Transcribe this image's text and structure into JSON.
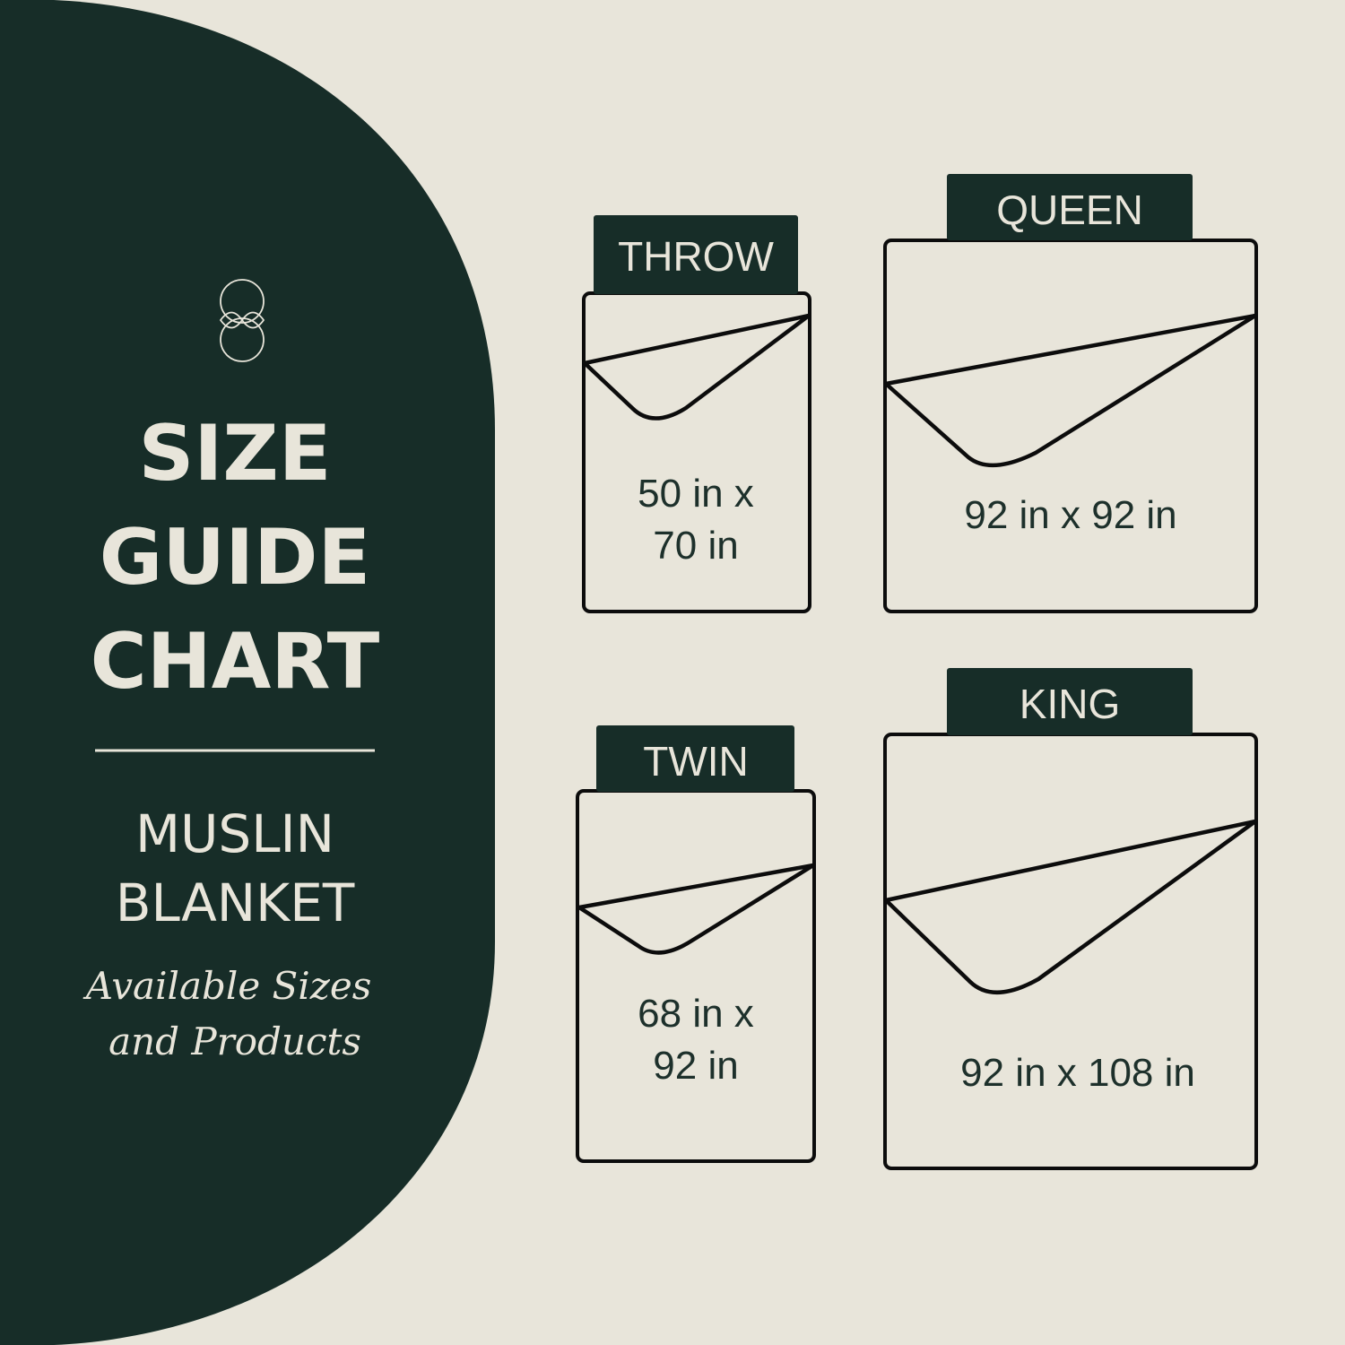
{
  "colors": {
    "background": "#e8e5da",
    "panel": "#172d28",
    "text_light": "#e8e5da",
    "outline": "#0c0c0c"
  },
  "panel": {
    "logo": "flower-logo-icon",
    "title_lines": [
      "SIZE",
      "GUIDE",
      "CHART"
    ],
    "product_lines": [
      "MUSLIN",
      "BLANKET"
    ],
    "subtitle_lines": [
      "Available Sizes",
      "and Products"
    ]
  },
  "sizes": [
    {
      "name": "THROW",
      "dimension_lines": [
        "50 in x",
        "70 in"
      ]
    },
    {
      "name": "QUEEN",
      "dimension_lines": [
        "92 in x 92 in"
      ]
    },
    {
      "name": "TWIN",
      "dimension_lines": [
        "68 in x",
        "92 in"
      ]
    },
    {
      "name": "KING",
      "dimension_lines": [
        "92 in x 108 in"
      ]
    }
  ]
}
